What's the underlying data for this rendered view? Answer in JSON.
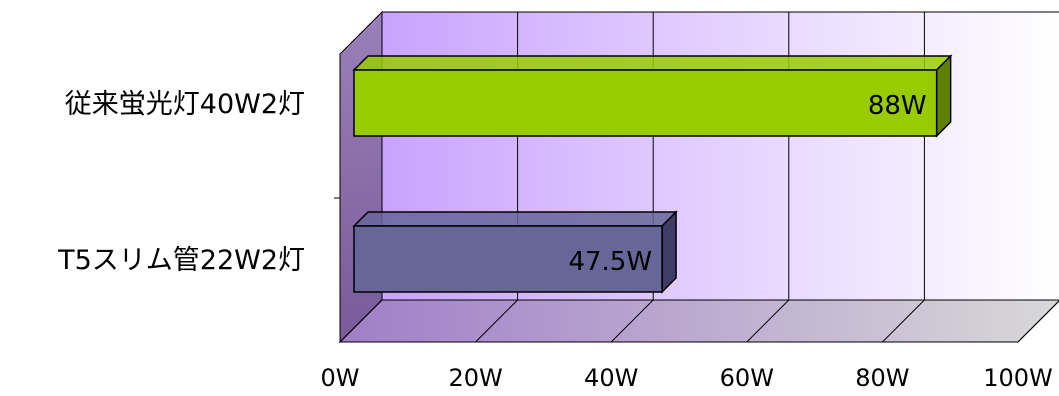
{
  "chart_data": {
    "type": "bar",
    "orientation": "horizontal",
    "three_d": true,
    "categories": [
      "従来蛍光灯40W2灯",
      "T5スリム管22W2灯"
    ],
    "values": [
      88,
      47.5
    ],
    "data_labels": [
      "88W",
      "47.5W"
    ],
    "bar_colors": [
      "#99cc00",
      "#666699"
    ],
    "xlim": [
      0,
      100
    ],
    "x_ticks": [
      0,
      20,
      40,
      60,
      80,
      100
    ],
    "x_tick_labels": [
      "0W",
      "20W",
      "40W",
      "60W",
      "80W",
      "100W"
    ],
    "grid": true,
    "legend": "none",
    "wall_colors": [
      "#c9a3ff",
      "#ffffff"
    ],
    "floor_color": "#a08bc0"
  }
}
